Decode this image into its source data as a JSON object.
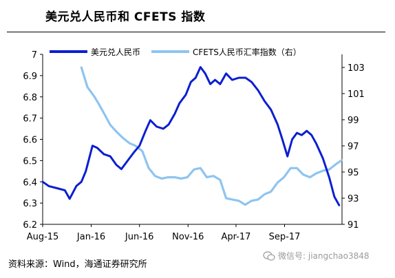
{
  "title": "美元兑人民币和 CFETS 指数",
  "source": "资料来源：Wind，海通证券研究所",
  "watermark": "微信号: jiangchao3848",
  "chart_data": {
    "type": "line",
    "xlabel": "",
    "ylabel": "",
    "x_ticks": [
      "Aug-15",
      "Jan-16",
      "Jun-16",
      "Nov-16",
      "Apr-17",
      "Sep-17"
    ],
    "y_left": {
      "lim": [
        6.2,
        7.0
      ],
      "ticks": [
        6.2,
        6.3,
        6.4,
        6.5,
        6.6,
        6.7,
        6.8,
        6.9,
        7.0
      ]
    },
    "y_right": {
      "lim": [
        91,
        104
      ],
      "ticks": [
        91,
        93,
        95,
        97,
        99,
        101,
        103
      ]
    },
    "legend_position": "top",
    "grid": false,
    "series": [
      {
        "name": "美元兑人民币",
        "axis": "left",
        "color": "#0b1fcf",
        "x": [
          "2015-08-01",
          "2015-08-20",
          "2015-09-15",
          "2015-10-10",
          "2015-10-25",
          "2015-11-15",
          "2015-12-01",
          "2015-12-15",
          "2016-01-05",
          "2016-01-20",
          "2016-02-10",
          "2016-03-01",
          "2016-03-20",
          "2016-04-05",
          "2016-04-25",
          "2016-05-15",
          "2016-06-01",
          "2016-06-20",
          "2016-07-05",
          "2016-07-25",
          "2016-08-15",
          "2016-09-01",
          "2016-09-20",
          "2016-10-05",
          "2016-10-25",
          "2016-11-10",
          "2016-11-25",
          "2016-12-10",
          "2016-12-25",
          "2017-01-10",
          "2017-01-25",
          "2017-02-10",
          "2017-03-01",
          "2017-03-20",
          "2017-04-10",
          "2017-05-01",
          "2017-05-20",
          "2017-06-10",
          "2017-06-30",
          "2017-07-20",
          "2017-08-10",
          "2017-08-25",
          "2017-09-10",
          "2017-09-25",
          "2017-10-10",
          "2017-10-25",
          "2017-11-10",
          "2017-11-25",
          "2017-12-10",
          "2017-12-31",
          "2018-01-20",
          "2018-02-05",
          "2018-02-20"
        ],
        "values": [
          6.4,
          6.38,
          6.37,
          6.36,
          6.32,
          6.38,
          6.4,
          6.45,
          6.57,
          6.56,
          6.53,
          6.52,
          6.48,
          6.46,
          6.5,
          6.54,
          6.57,
          6.64,
          6.69,
          6.66,
          6.65,
          6.67,
          6.72,
          6.77,
          6.81,
          6.87,
          6.89,
          6.94,
          6.91,
          6.86,
          6.88,
          6.86,
          6.91,
          6.88,
          6.89,
          6.89,
          6.87,
          6.83,
          6.78,
          6.74,
          6.67,
          6.6,
          6.52,
          6.6,
          6.63,
          6.62,
          6.64,
          6.62,
          6.58,
          6.51,
          6.42,
          6.33,
          6.29
        ]
      },
      {
        "name": "CFETS人民币汇率指数（右）",
        "axis": "right",
        "color": "#8ec4f0",
        "x": [
          "2015-12-01",
          "2015-12-20",
          "2016-01-10",
          "2016-01-25",
          "2016-02-10",
          "2016-03-01",
          "2016-03-20",
          "2016-04-10",
          "2016-05-01",
          "2016-05-20",
          "2016-06-10",
          "2016-06-30",
          "2016-07-20",
          "2016-08-10",
          "2016-08-30",
          "2016-09-20",
          "2016-10-10",
          "2016-10-30",
          "2016-11-20",
          "2016-12-10",
          "2016-12-30",
          "2017-01-20",
          "2017-02-10",
          "2017-03-01",
          "2017-03-20",
          "2017-04-10",
          "2017-04-30",
          "2017-05-20",
          "2017-06-10",
          "2017-06-30",
          "2017-07-20",
          "2017-08-10",
          "2017-08-30",
          "2017-09-20",
          "2017-10-10",
          "2017-10-30",
          "2017-11-20",
          "2017-12-10",
          "2017-12-31",
          "2018-01-20",
          "2018-02-10",
          "2018-02-28"
        ],
        "values": [
          103.0,
          101.5,
          100.8,
          100.2,
          99.5,
          98.6,
          98.1,
          97.6,
          97.2,
          97.0,
          96.6,
          95.3,
          94.7,
          94.5,
          94.6,
          94.6,
          94.5,
          94.6,
          95.2,
          95.3,
          94.6,
          94.7,
          94.4,
          93.0,
          92.9,
          92.8,
          92.5,
          92.8,
          92.9,
          93.3,
          93.5,
          94.2,
          94.6,
          95.3,
          95.3,
          94.8,
          94.6,
          94.9,
          95.1,
          95.2,
          95.6,
          95.9
        ]
      }
    ]
  }
}
